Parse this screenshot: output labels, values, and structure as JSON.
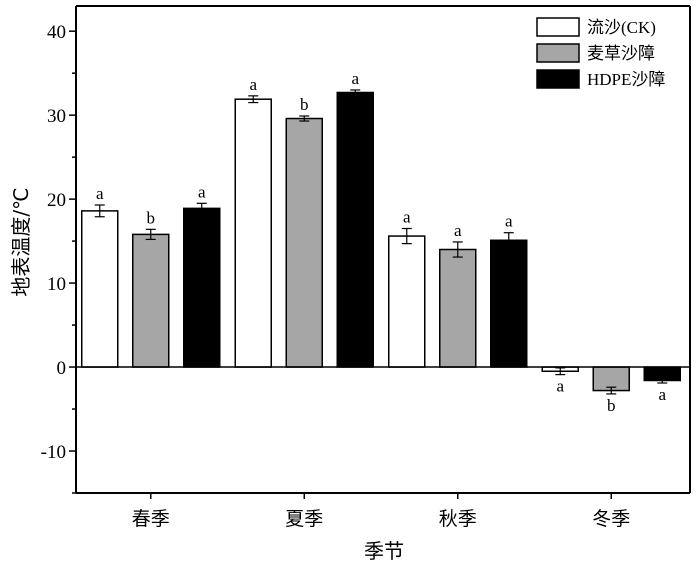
{
  "chart_data": {
    "type": "bar",
    "title": "",
    "xlabel": "季节",
    "ylabel": "地表温度/℃",
    "ylim": [
      -15,
      43
    ],
    "yticks": [
      -10,
      0,
      10,
      20,
      30,
      40
    ],
    "legend_position": "top-right",
    "categories": [
      "春季",
      "夏季",
      "秋季",
      "冬季"
    ],
    "series": [
      {
        "name": "流沙(CK)",
        "color": "#ffffff",
        "values": [
          18.6,
          31.9,
          15.6,
          -0.5
        ],
        "errors": [
          0.7,
          0.4,
          0.9,
          0.4
        ],
        "labels": [
          "a",
          "a",
          "a",
          "a"
        ]
      },
      {
        "name": "麦草沙障",
        "color": "#a6a6a6",
        "values": [
          15.8,
          29.6,
          14.0,
          -2.8
        ],
        "errors": [
          0.6,
          0.3,
          0.9,
          0.4
        ],
        "labels": [
          "b",
          "b",
          "a",
          "b"
        ]
      },
      {
        "name": "HDPE沙障",
        "color": "#000000",
        "values": [
          18.9,
          32.7,
          15.1,
          -1.6
        ],
        "errors": [
          0.6,
          0.3,
          0.9,
          0.3
        ],
        "labels": [
          "a",
          "a",
          "a",
          "a"
        ]
      }
    ]
  }
}
